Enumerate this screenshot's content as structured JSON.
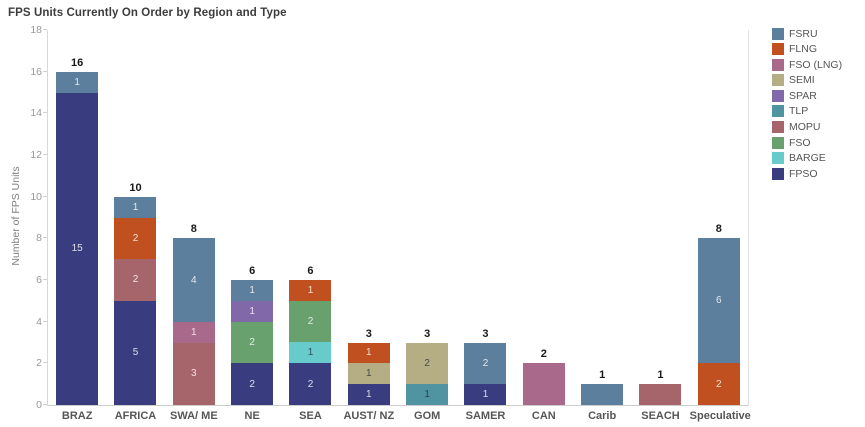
{
  "title": "FPS Units Currently On Order by Region and Type",
  "chart_data": {
    "type": "bar",
    "stacked": true,
    "title": "FPS Units Currently On Order by Region and Type",
    "xlabel": "",
    "ylabel": "Number of FPS Units",
    "ylim": [
      0,
      18
    ],
    "ytick_step": 2,
    "grid": false,
    "legend_position": "top-right",
    "legend_order": [
      "FSRU",
      "FLNG",
      "FSO (LNG)",
      "SEMI",
      "SPAR",
      "TLP",
      "MOPU",
      "FSO",
      "BARGE",
      "FPSO"
    ],
    "types": {
      "FSRU": {
        "color": "#5d7f9e",
        "label_style": "light"
      },
      "FLNG": {
        "color": "#c0501f",
        "label_style": "light"
      },
      "FSO (LNG)": {
        "color": "#a8698b",
        "label_style": "light"
      },
      "SEMI": {
        "color": "#b5ae85",
        "label_style": "dark"
      },
      "SPAR": {
        "color": "#8168a8",
        "label_style": "light"
      },
      "TLP": {
        "color": "#4f94a0",
        "label_style": "dark"
      },
      "MOPU": {
        "color": "#a5656b",
        "label_style": "light"
      },
      "FSO": {
        "color": "#68a06e",
        "label_style": "light"
      },
      "BARGE": {
        "color": "#66cbca",
        "label_style": "dark"
      },
      "FPSO": {
        "color": "#393c7f",
        "label_style": "light"
      }
    },
    "categories": [
      "BRAZ",
      "AFRICA",
      "SWA/ ME",
      "NE",
      "SEA",
      "AUST/ NZ",
      "GOM",
      "SAMER",
      "CAN",
      "Carib",
      "SEACH",
      "Speculative"
    ],
    "bars": [
      {
        "category": "BRAZ",
        "total": 16,
        "segments": [
          {
            "type": "FPSO",
            "value": 15
          },
          {
            "type": "FSRU",
            "value": 1
          }
        ]
      },
      {
        "category": "AFRICA",
        "total": 10,
        "segments": [
          {
            "type": "FPSO",
            "value": 5
          },
          {
            "type": "MOPU",
            "value": 2
          },
          {
            "type": "FLNG",
            "value": 2
          },
          {
            "type": "FSRU",
            "value": 1
          }
        ]
      },
      {
        "category": "SWA/ ME",
        "total": 8,
        "segments": [
          {
            "type": "MOPU",
            "value": 3
          },
          {
            "type": "FSO (LNG)",
            "value": 1
          },
          {
            "type": "FSRU",
            "value": 4
          }
        ]
      },
      {
        "category": "NE",
        "total": 6,
        "segments": [
          {
            "type": "FPSO",
            "value": 2
          },
          {
            "type": "FSO",
            "value": 2
          },
          {
            "type": "SPAR",
            "value": 1
          },
          {
            "type": "FSRU",
            "value": 1
          }
        ]
      },
      {
        "category": "SEA",
        "total": 6,
        "segments": [
          {
            "type": "FPSO",
            "value": 2
          },
          {
            "type": "BARGE",
            "value": 1
          },
          {
            "type": "FSO",
            "value": 2
          },
          {
            "type": "FLNG",
            "value": 1
          }
        ]
      },
      {
        "category": "AUST/ NZ",
        "total": 3,
        "segments": [
          {
            "type": "FPSO",
            "value": 1
          },
          {
            "type": "SEMI",
            "value": 1
          },
          {
            "type": "FLNG",
            "value": 1
          }
        ]
      },
      {
        "category": "GOM",
        "total": 3,
        "segments": [
          {
            "type": "TLP",
            "value": 1
          },
          {
            "type": "SEMI",
            "value": 2
          }
        ]
      },
      {
        "category": "SAMER",
        "total": 3,
        "segments": [
          {
            "type": "FPSO",
            "value": 1
          },
          {
            "type": "FSRU",
            "value": 2
          }
        ]
      },
      {
        "category": "CAN",
        "total": 2,
        "segments": [
          {
            "type": "FSO (LNG)",
            "value": 2
          }
        ]
      },
      {
        "category": "Carib",
        "total": 1,
        "segments": [
          {
            "type": "FSRU",
            "value": 1
          }
        ]
      },
      {
        "category": "SEACH",
        "total": 1,
        "segments": [
          {
            "type": "MOPU",
            "value": 1
          }
        ]
      },
      {
        "category": "Speculative",
        "total": 8,
        "segments": [
          {
            "type": "FLNG",
            "value": 2
          },
          {
            "type": "FSRU",
            "value": 6
          }
        ]
      }
    ]
  }
}
